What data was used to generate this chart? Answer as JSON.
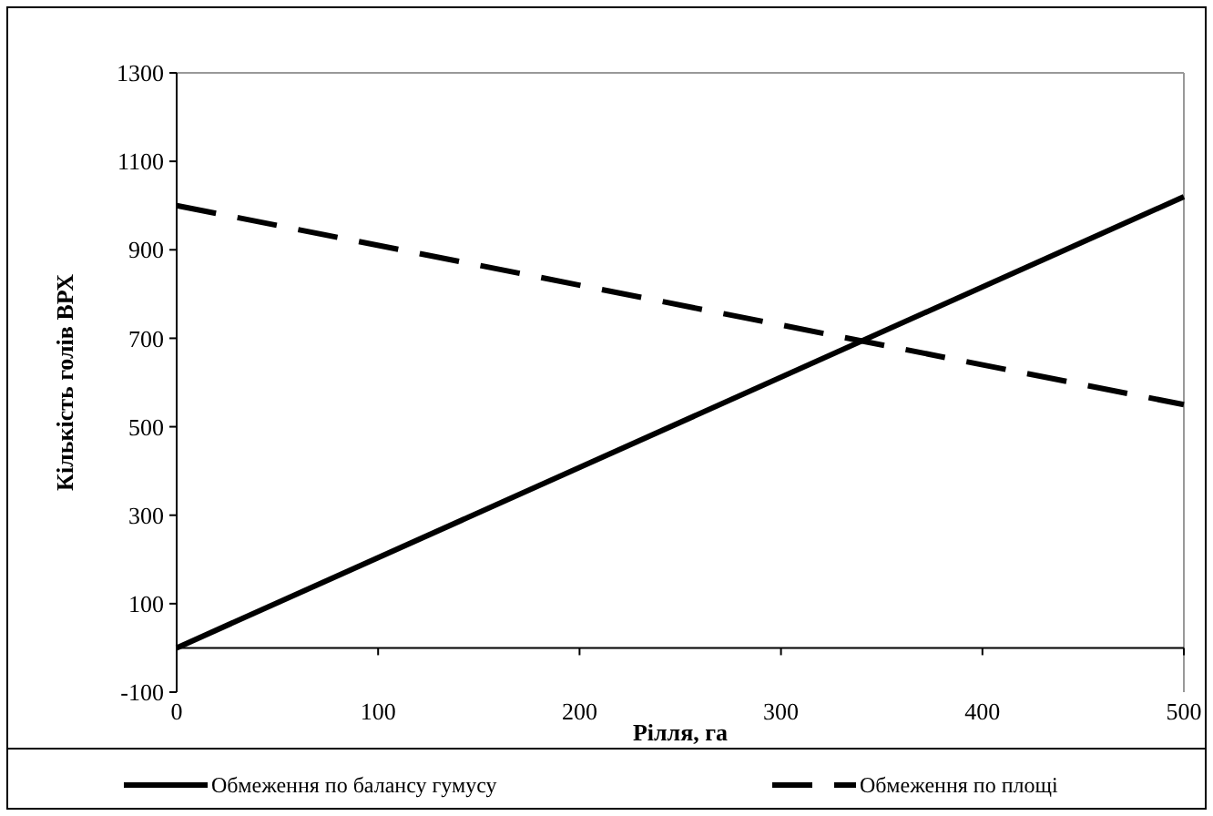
{
  "chart_data": {
    "type": "line",
    "xlabel": "Рілля, га",
    "ylabel": "Кількість голів ВРХ",
    "x": [
      0,
      500
    ],
    "series": [
      {
        "name": "Обмеження по балансу гумусу",
        "color": "#000000",
        "values": [
          0,
          1020
        ],
        "line_style": "solid"
      },
      {
        "name": "Обмеження по площі",
        "color": "#000000",
        "values": [
          1000,
          550
        ],
        "line_style": "dashed"
      }
    ],
    "xlim": [
      0,
      500
    ],
    "xticks": [
      0,
      100,
      200,
      300,
      400,
      500
    ],
    "ylim": [
      -100,
      1300
    ],
    "yticks": [
      -100,
      100,
      300,
      500,
      700,
      900,
      1100,
      1300
    ],
    "grid": false,
    "legend": "bottom",
    "marker": "none"
  }
}
